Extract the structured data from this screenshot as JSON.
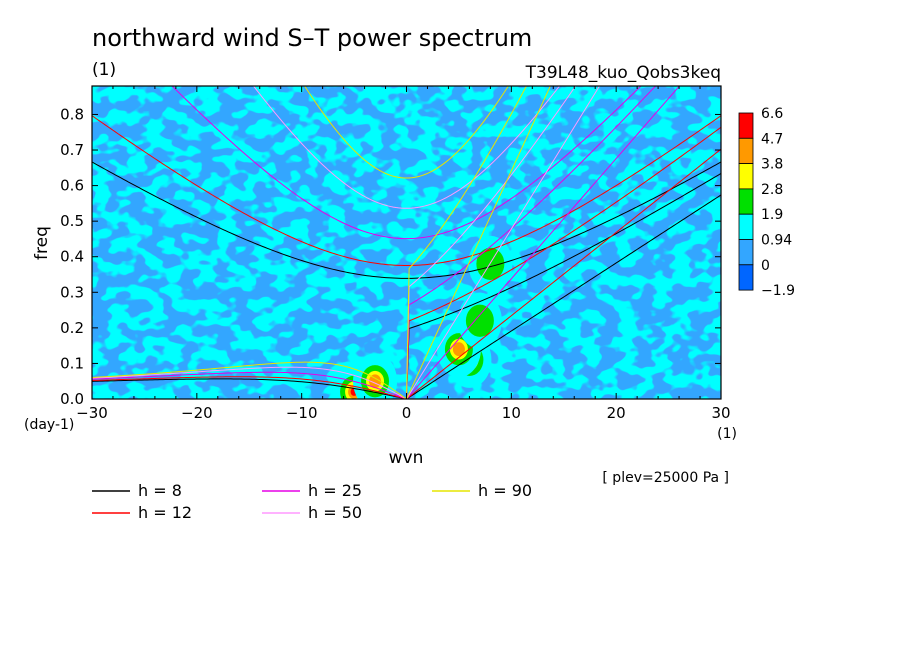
{
  "chart_data": {
    "type": "heatmap",
    "title": "northward wind S–T power spectrum",
    "subtitle_left": "(1)",
    "subtitle_right": "T39L48_kuo_Qobs3keq",
    "xlabel": "wvn",
    "ylabel": "freq",
    "x_unit": "(1)",
    "y_unit": "(day-1)",
    "note": "[ plev=25000 Pa ]",
    "xlim": [
      -30,
      30
    ],
    "ylim": [
      0,
      0.88
    ],
    "xticks": [
      "−30",
      "−20",
      "−10",
      "0",
      "10",
      "20",
      "30"
    ],
    "xtick_values": [
      -30,
      -20,
      -10,
      0,
      10,
      20,
      30
    ],
    "yticks": [
      "0.0",
      "0.1",
      "0.2",
      "0.3",
      "0.4",
      "0.5",
      "0.6",
      "0.7",
      "0.8"
    ],
    "ytick_values": [
      0,
      0.1,
      0.2,
      0.3,
      0.4,
      0.5,
      0.6,
      0.7,
      0.8
    ],
    "colorbar": {
      "labels": [
        "6.6",
        "4.7",
        "3.8",
        "2.8",
        "1.9",
        "0.94",
        "0",
        "−1.9"
      ],
      "colors": [
        "#ff0000",
        "#ff9900",
        "#ffff00",
        "#00e000",
        "#00ffff",
        "#33a6ff",
        "#0066ff"
      ]
    },
    "background_colors": {
      "low": "#33a6ff",
      "mid": "#00ffff",
      "green": "#00e000",
      "yellow": "#ffff00",
      "orange": "#ff9900",
      "red": "#ff0000"
    },
    "hot_spots": [
      {
        "wvn": -5,
        "freq": 0.02,
        "level": "red"
      },
      {
        "wvn": -3,
        "freq": 0.05,
        "level": "orange"
      },
      {
        "wvn": 6,
        "freq": 0.11,
        "level": "red"
      },
      {
        "wvn": 5,
        "freq": 0.14,
        "level": "orange"
      },
      {
        "wvn": 7,
        "freq": 0.22,
        "level": "green"
      },
      {
        "wvn": 8,
        "freq": 0.38,
        "level": "green"
      }
    ],
    "dispersion_curves": [
      {
        "h": "8",
        "color": "#000000"
      },
      {
        "h": "12",
        "color": "#ff0000"
      },
      {
        "h": "25",
        "color": "#e600e6"
      },
      {
        "h": "50",
        "color": "#ff99ff"
      },
      {
        "h": "90",
        "color": "#e6e600"
      }
    ],
    "legend": [
      {
        "label": "h =  8",
        "color": "#000000"
      },
      {
        "label": "h = 12",
        "color": "#ff0000"
      },
      {
        "label": "h = 25",
        "color": "#e600e6"
      },
      {
        "label": "h = 50",
        "color": "#ff99ff"
      },
      {
        "label": "h = 90",
        "color": "#e6e600"
      }
    ]
  }
}
